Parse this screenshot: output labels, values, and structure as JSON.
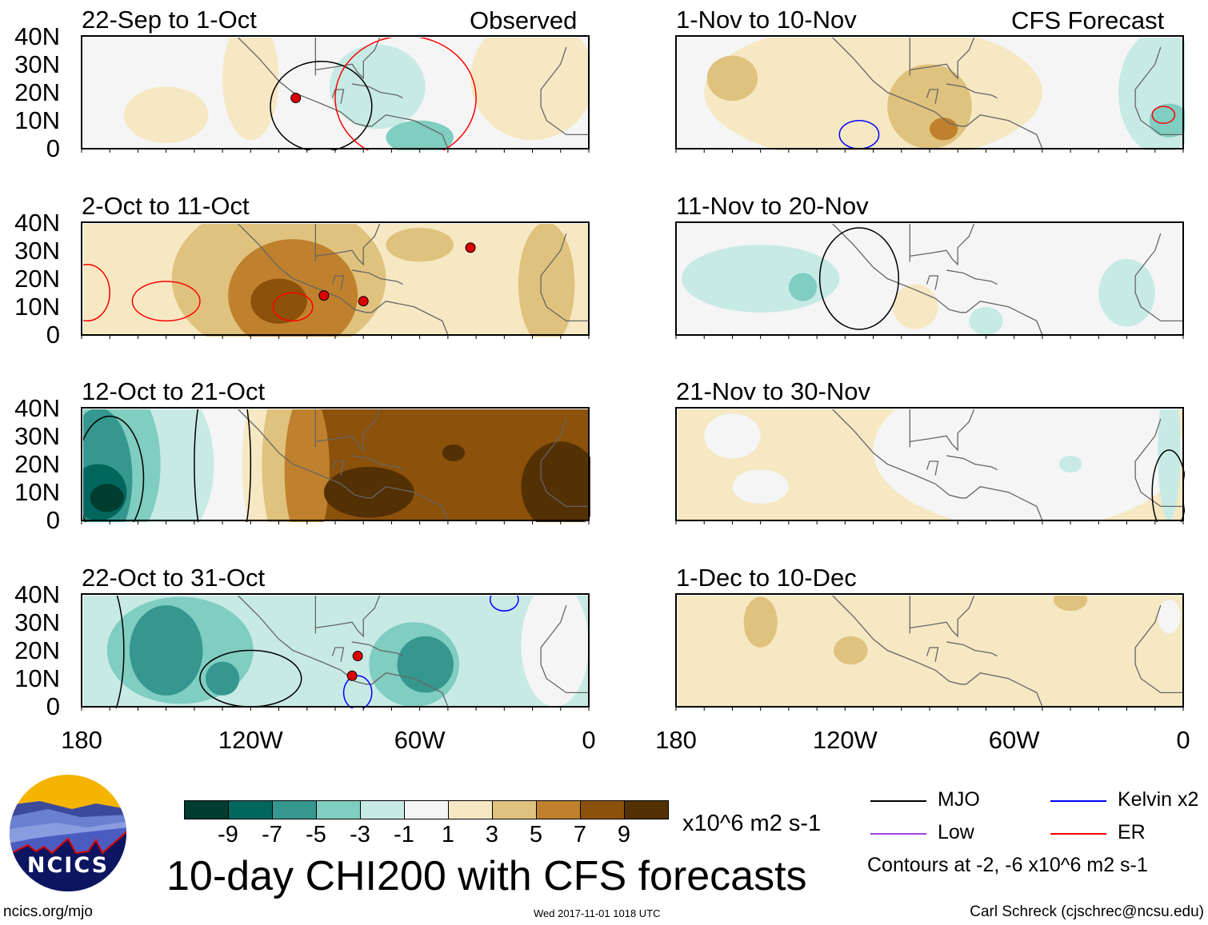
{
  "observed_label": "Observed",
  "forecast_label": "CFS Forecast",
  "panels": [
    {
      "title": "22-Sep to 1-Oct"
    },
    {
      "title": "2-Oct to 11-Oct"
    },
    {
      "title": "12-Oct to 21-Oct"
    },
    {
      "title": "22-Oct to 31-Oct"
    },
    {
      "title": "1-Nov to 10-Nov"
    },
    {
      "title": "11-Nov to 20-Nov"
    },
    {
      "title": "21-Nov to 30-Nov"
    },
    {
      "title": "1-Dec to 10-Dec"
    }
  ],
  "lat_labels": [
    "40N",
    "30N",
    "20N",
    "10N",
    "0"
  ],
  "lon_labels": [
    "180",
    "120W",
    "60W",
    "0"
  ],
  "colorbar": {
    "levels": [
      "-9",
      "-7",
      "-5",
      "-3",
      "-1",
      "1",
      "3",
      "5",
      "7",
      "9"
    ],
    "colors": [
      "#003c30",
      "#01665e",
      "#35978f",
      "#80cdc1",
      "#c7eae5",
      "#f5f5f5",
      "#f6e8c3",
      "#dfc27d",
      "#bf812d",
      "#8c510a",
      "#543005"
    ],
    "units": "x10^6 m2 s-1"
  },
  "title": "10-day CHI200 with CFS forecasts",
  "legend": [
    {
      "label": "MJO",
      "color": "#000000"
    },
    {
      "label": "Kelvin x2",
      "color": "#0000ff"
    },
    {
      "label": "Low",
      "color": "#a040e0"
    },
    {
      "label": "ER",
      "color": "#ff0000"
    }
  ],
  "contours_note": "Contours at -2, -6 x10^6 m2 s-1",
  "logo_text": "NCICS",
  "site": "ncics.org/mjo",
  "timestamp": "Wed 2017-11-01 1018 UTC",
  "credit": "Carl Schreck (cjschrec@ncsu.edu)"
}
